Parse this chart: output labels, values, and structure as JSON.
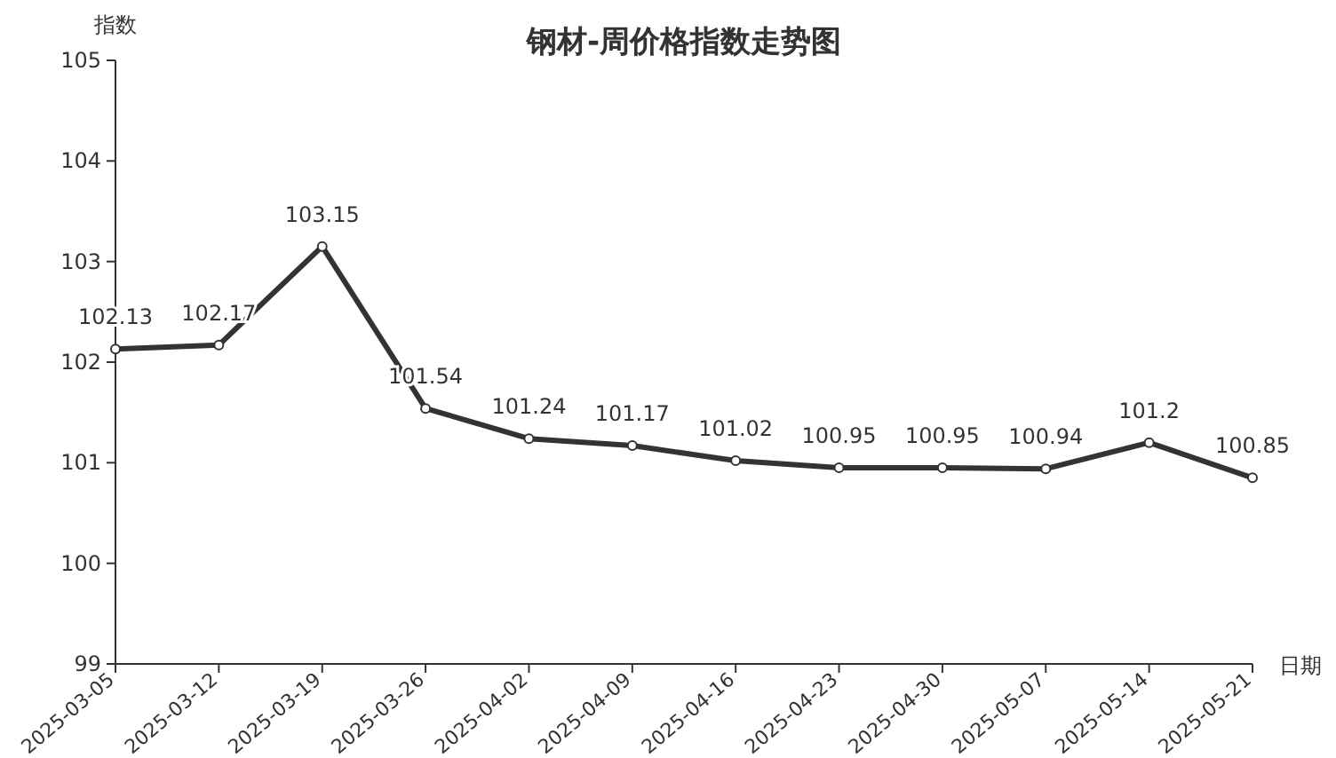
{
  "chart_data": {
    "type": "line",
    "title": "钢材-周价格指数走势图",
    "ylabel": "指数",
    "xlabel": "日期",
    "categories": [
      "2025-03-05",
      "2025-03-12",
      "2025-03-19",
      "2025-03-26",
      "2025-04-02",
      "2025-04-09",
      "2025-04-16",
      "2025-04-23",
      "2025-04-30",
      "2025-05-07",
      "2025-05-14",
      "2025-05-21"
    ],
    "values": [
      102.13,
      102.17,
      103.15,
      101.54,
      101.24,
      101.17,
      101.02,
      100.95,
      100.95,
      100.94,
      101.2,
      100.85
    ],
    "color": "#333333",
    "ylim": [
      99,
      105
    ],
    "yticks": [
      99,
      100,
      101,
      102,
      103,
      104,
      105
    ],
    "data_labels": true,
    "marker": "circle"
  }
}
